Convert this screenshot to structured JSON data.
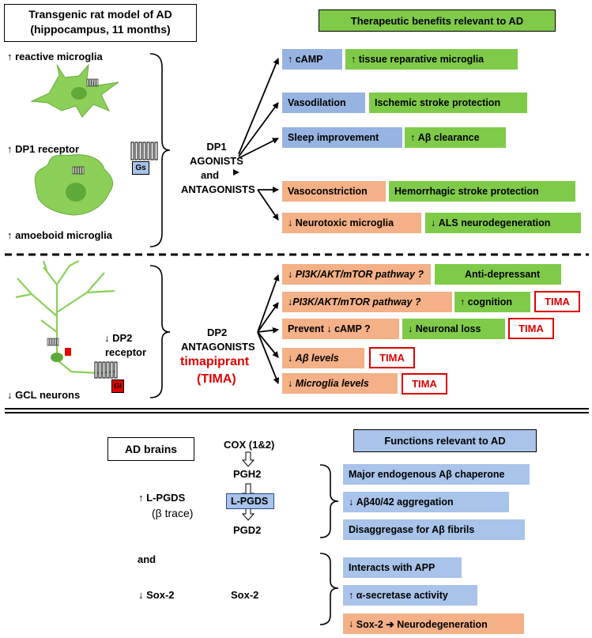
{
  "top": {
    "model_title_line1": "Transgenic rat model of AD",
    "model_title_line2": "(hippocampus, 11 months)",
    "benefits_header": "Therapeutic benefits relevant to AD",
    "reactive_microglia": "reactive microglia",
    "dp1_receptor": "DP1 receptor",
    "amoeboid_microglia": "amoeboid microglia",
    "gs_label": "Gs",
    "dp1_center": [
      "DP1",
      "AGONISTS",
      "and",
      "ANTAGONISTS"
    ],
    "rows": [
      {
        "a": "cAMP",
        "b": "tissue reparative microglia"
      },
      {
        "a": "Vasodilation",
        "b": "Ischemic stroke protection"
      },
      {
        "a": "Sleep improvement",
        "b": "Aβ clearance"
      },
      {
        "a": "Vasoconstriction",
        "b": "Hemorrhagic stroke protection"
      },
      {
        "a": "Neurotoxic microglia",
        "b": "ALS neurodegeneration"
      }
    ]
  },
  "middle": {
    "dp2_receptor_line1": "DP2",
    "dp2_receptor_line2": "receptor",
    "gcl_neurons": "GCL neurons",
    "gi_label": "Gi",
    "dp2_center": [
      "DP2",
      "ANTAGONISTS"
    ],
    "drug_name": "timapiprant",
    "drug_abbr": "(TIMA)",
    "rows": [
      {
        "a": "PI3K/AKT/mTOR pathway ?",
        "b": "Anti-depressant",
        "tima": ""
      },
      {
        "a": "PI3K/AKT/mTOR pathway ?",
        "b": "cognition",
        "tima": "TIMA"
      },
      {
        "a": "Prevent",
        "a2": "cAMP ?",
        "b": "Neuronal loss",
        "tima": "TIMA"
      },
      {
        "a": "Aβ  levels",
        "tima": "TIMA"
      },
      {
        "a": "Microglia levels",
        "tima": "TIMA"
      }
    ]
  },
  "bottom": {
    "ad_brains": "AD  brains",
    "functions_header": "Functions relevant to AD",
    "lpgds_left": "L-PGDS",
    "beta_trace": "(β trace)",
    "and": "and",
    "sox2_left": "Sox-2",
    "cox": "COX (1&2)",
    "pgh2": "PGH2",
    "lpgds_box": "L-PGDS",
    "pgd2": "PGD2",
    "sox2_center": "Sox-2",
    "rows": [
      {
        "text": "Major endogenous Aβ chaperone",
        "color": "#a9c3ea"
      },
      {
        "text": "Aβ40/42 aggregation",
        "color": "#a9c3ea"
      },
      {
        "text": "Disaggregase for Aβ  fibrils",
        "color": "#a9c3ea"
      },
      {
        "text": "Interacts with APP",
        "color": "#a9c3ea"
      },
      {
        "text": "α-secretase activity",
        "color": "#a9c3ea"
      },
      {
        "text": "Sox-2 ➔ Neurodegeneration",
        "color": "#f4b087"
      }
    ]
  },
  "colors": {
    "blue": "#97b3e1",
    "green": "#7fcb49",
    "orange": "#f4b087",
    "red": "#e00000",
    "cell_green": "#8cd05a"
  }
}
